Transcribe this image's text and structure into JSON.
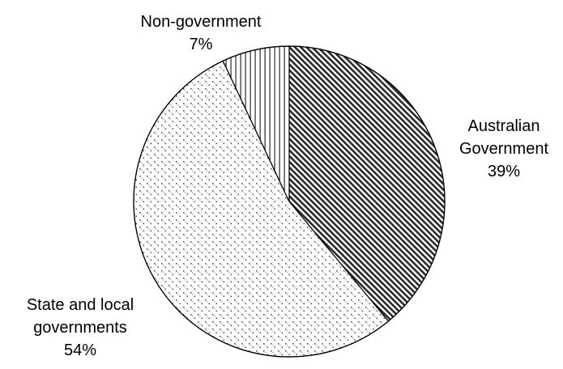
{
  "chart_data": {
    "type": "pie",
    "start_angle_deg": 0,
    "direction": "clockwise",
    "slices": [
      {
        "id": "australian",
        "label_lines": [
          "Australian",
          "Government",
          "39%"
        ],
        "value": 39,
        "pattern": "diagonal-hatch"
      },
      {
        "id": "state-local",
        "label_lines": [
          "State and local",
          "governments",
          "54%"
        ],
        "value": 54,
        "pattern": "dots"
      },
      {
        "id": "non-government",
        "label_lines": [
          "Non-government",
          "7%"
        ],
        "value": 7,
        "pattern": "vertical-lines"
      }
    ],
    "colors": {
      "outline": "#000000",
      "pattern_ink": "#2a2a2a",
      "background": "#ffffff"
    }
  }
}
